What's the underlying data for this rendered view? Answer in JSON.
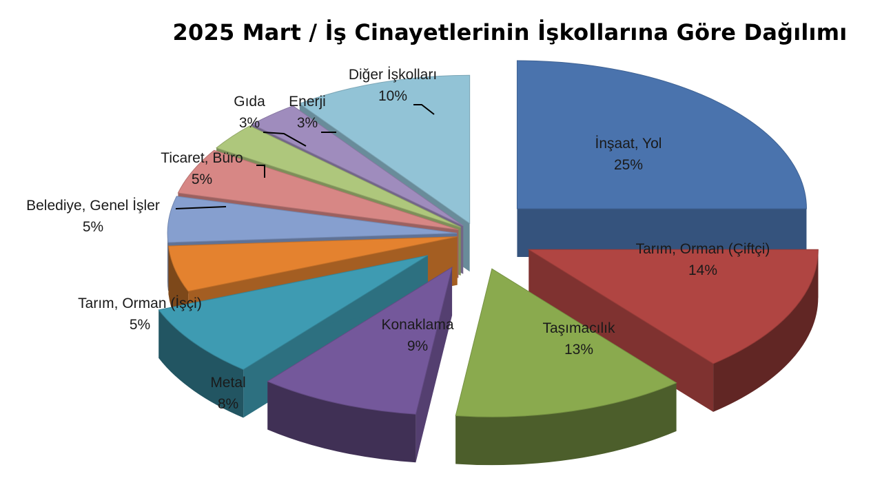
{
  "chart_data": {
    "type": "pie",
    "title": "2025 Mart / İş Cinayetlerinin İşkollarına Göre Dağılımı",
    "slices": [
      {
        "label": "İnşaat, Yol",
        "value": 25,
        "value_label": "25%",
        "color": "#4a73ad"
      },
      {
        "label": "Tarım, Orman (Çiftçi)",
        "value": 14,
        "value_label": "14%",
        "color": "#b04542"
      },
      {
        "label": "Taşımacılık",
        "value": 13,
        "value_label": "13%",
        "color": "#8aaa4e"
      },
      {
        "label": "Konaklama",
        "value": 9,
        "value_label": "9%",
        "color": "#74589b"
      },
      {
        "label": "Metal",
        "value": 8,
        "value_label": "8%",
        "color": "#3e9bb2"
      },
      {
        "label": "Tarım, Orman (İşçi)",
        "value": 5,
        "value_label": "5%",
        "color": "#e4822f"
      },
      {
        "label": "Belediye, Genel İşler",
        "value": 5,
        "value_label": "5%",
        "color": "#869fcf"
      },
      {
        "label": "Ticaret, Büro",
        "value": 5,
        "value_label": "5%",
        "color": "#d78785"
      },
      {
        "label": "Gıda",
        "value": 3,
        "value_label": "3%",
        "color": "#aec77c"
      },
      {
        "label": "Enerji",
        "value": 3,
        "value_label": "3%",
        "color": "#9f8cbd"
      },
      {
        "label": "Diğer İşkolları",
        "value": 10,
        "value_label": "10%",
        "color": "#92c3d6"
      }
    ]
  }
}
